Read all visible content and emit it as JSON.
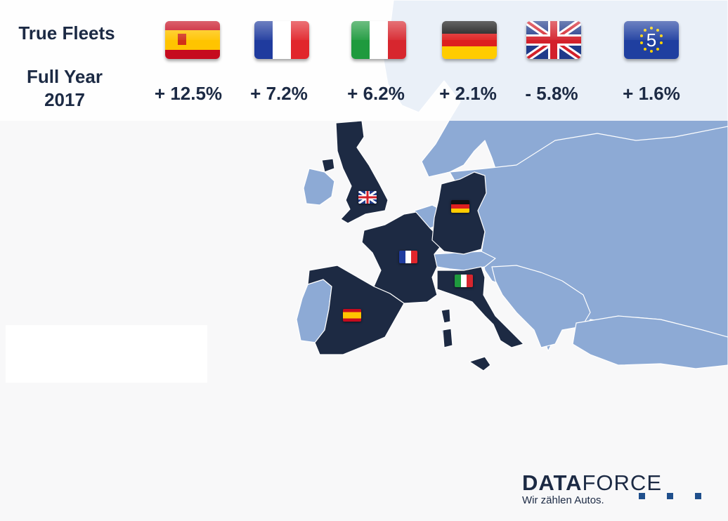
{
  "header": {
    "title": "True Fleets",
    "period": "Full Year 2017"
  },
  "markets": [
    {
      "country": "Spain",
      "flag_icon": "spain-flag-icon",
      "change": "+ 12.5%",
      "value": 12.5
    },
    {
      "country": "France",
      "flag_icon": "france-flag-icon",
      "change": "+ 7.2%",
      "value": 7.2
    },
    {
      "country": "Italy",
      "flag_icon": "italy-flag-icon",
      "change": "+ 6.2%",
      "value": 6.2
    },
    {
      "country": "Germany",
      "flag_icon": "germany-flag-icon",
      "change": "+ 2.1%",
      "value": 2.1
    },
    {
      "country": "United Kingdom",
      "flag_icon": "uk-flag-icon",
      "change": "- 5.8%",
      "value": -5.8
    },
    {
      "country": "Europe Top 5",
      "flag_icon": "eu-flag-icon",
      "eu_number": "5",
      "change": "+ 1.6%",
      "value": 1.6
    }
  ],
  "map": {
    "highlighted": [
      "Spain",
      "France",
      "Italy",
      "Germany",
      "United Kingdom"
    ],
    "highlight_color": "#1d2a43",
    "land_color": "#8daad5",
    "sea_color": "#f8f8f9",
    "border_color": "#ffffff"
  },
  "logo": {
    "brand_strong": "DATA",
    "brand_light": "FORCE",
    "tagline": "Wir zählen Autos.",
    "dot_color": "#1f4f8c"
  }
}
